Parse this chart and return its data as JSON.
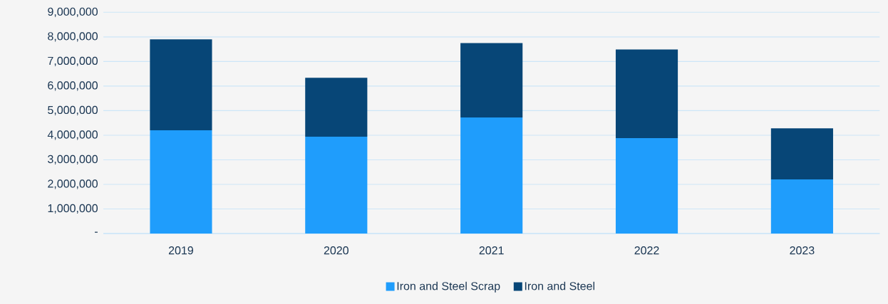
{
  "chart_data": {
    "type": "bar",
    "stacked": true,
    "categories": [
      "2019",
      "2020",
      "2021",
      "2022",
      "2023"
    ],
    "series": [
      {
        "name": "Iron and Steel Scrap",
        "color": "#1f9dfc",
        "values": [
          4200000,
          3940000,
          4720000,
          3880000,
          2200000
        ]
      },
      {
        "name": "Iron and Steel",
        "color": "#074677",
        "values": [
          3700000,
          2400000,
          3030000,
          3610000,
          2080000
        ]
      }
    ],
    "ylim": [
      0,
      9000000
    ],
    "yticks": [
      {
        "value": 0,
        "label": "-"
      },
      {
        "value": 1000000,
        "label": "1,000,000"
      },
      {
        "value": 2000000,
        "label": "2,000,000"
      },
      {
        "value": 3000000,
        "label": "3,000,000"
      },
      {
        "value": 4000000,
        "label": "4,000,000"
      },
      {
        "value": 5000000,
        "label": "5,000,000"
      },
      {
        "value": 6000000,
        "label": "6,000,000"
      },
      {
        "value": 7000000,
        "label": "7,000,000"
      },
      {
        "value": 8000000,
        "label": "8,000,000"
      },
      {
        "value": 9000000,
        "label": "9,000,000"
      }
    ],
    "grid": "y",
    "legend": "bottom"
  }
}
